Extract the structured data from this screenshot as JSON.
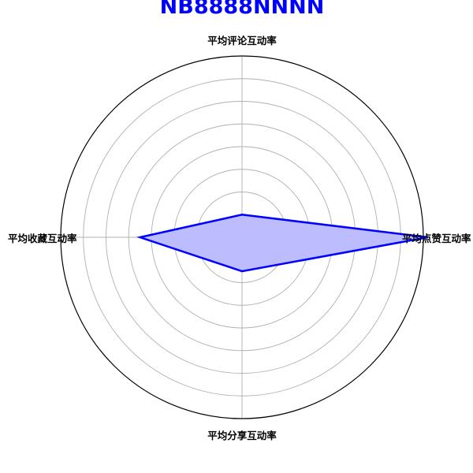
{
  "chart_data": {
    "type": "radar",
    "title": "NB8888NNNN",
    "title_color": "#0000ff",
    "axes": [
      "平均点赞互动率",
      "平均评论互动率",
      "平均收藏互动率",
      "平均分享互动率"
    ],
    "series": [
      {
        "values": [
          8.2,
          1.0,
          4.5,
          1.5
        ],
        "line_color": "#0000ff",
        "fill_color": "#bcbcff"
      }
    ],
    "rmax": 8.0,
    "ring_ticks": [
      1,
      2,
      3,
      4,
      5,
      6,
      7
    ],
    "grid": true,
    "grid_color": "#b0b0b0"
  }
}
